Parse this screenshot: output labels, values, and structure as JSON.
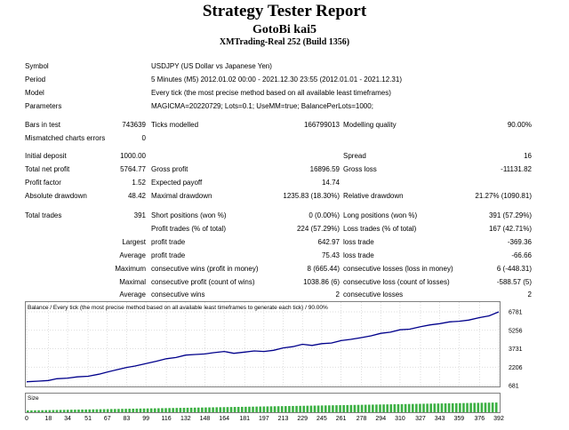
{
  "title": "Strategy Tester Report",
  "expert": "GotoBi kai5",
  "server": "XMTrading-Real 252 (Build 1356)",
  "settings": [
    {
      "label": "Symbol",
      "value": "USDJPY (US Dollar vs Japanese Yen)"
    },
    {
      "label": "Period",
      "value": "5 Minutes (M5) 2012.01.02 00:00 - 2021.12.30 23:55 (2012.01.01 - 2021.12.31)"
    },
    {
      "label": "Model",
      "value": "Every tick (the most precise method based on all available least timeframes)"
    },
    {
      "label": "Parameters",
      "value": "MAGICMA=20220729; Lots=0.1; UseMM=true; BalancePerLots=1000;"
    }
  ],
  "bars": {
    "label": "Bars in test",
    "value": "743639",
    "ticks_label": "Ticks modelled",
    "ticks_value": "166799013",
    "mq_label": "Modelling quality",
    "mq_value": "90.00%"
  },
  "mismatch": {
    "label": "Mismatched charts errors",
    "value": "0"
  },
  "stats": {
    "initial_deposit": {
      "label": "Initial deposit",
      "value": "1000.00"
    },
    "spread": {
      "label": "Spread",
      "value": "16"
    },
    "total_net_profit": {
      "label": "Total net profit",
      "value": "5764.77"
    },
    "gross_profit": {
      "label": "Gross profit",
      "value": "16896.59"
    },
    "gross_loss": {
      "label": "Gross loss",
      "value": "-11131.82"
    },
    "profit_factor": {
      "label": "Profit factor",
      "value": "1.52"
    },
    "expected_payoff": {
      "label": "Expected payoff",
      "value": "14.74"
    },
    "absolute_drawdown": {
      "label": "Absolute drawdown",
      "value": "48.42"
    },
    "maximal_drawdown": {
      "label": "Maximal drawdown",
      "value": "1235.83 (18.30%)"
    },
    "relative_drawdown": {
      "label": "Relative drawdown",
      "value": "21.27% (1090.81)"
    },
    "total_trades": {
      "label": "Total trades",
      "value": "391"
    },
    "short_positions": {
      "label": "Short positions (won %)",
      "value": "0 (0.00%)"
    },
    "long_positions": {
      "label": "Long positions (won %)",
      "value": "391 (57.29%)"
    },
    "profit_trades": {
      "label": "Profit trades (% of total)",
      "value": "224 (57.29%)"
    },
    "loss_trades": {
      "label": "Loss trades (% of total)",
      "value": "167 (42.71%)"
    }
  },
  "extremes": [
    {
      "prefix": "Largest",
      "a_label": "profit trade",
      "a_value": "642.97",
      "b_label": "loss trade",
      "b_value": "-369.36"
    },
    {
      "prefix": "Average",
      "a_label": "profit trade",
      "a_value": "75.43",
      "b_label": "loss trade",
      "b_value": "-66.66"
    },
    {
      "prefix": "Maximum",
      "a_label": "consecutive wins (profit in money)",
      "a_value": "8 (665.44)",
      "b_label": "consecutive losses (loss in money)",
      "b_value": "6 (-448.31)"
    },
    {
      "prefix": "Maximal",
      "a_label": "consecutive profit (count of wins)",
      "a_value": "1038.86 (6)",
      "b_label": "consecutive loss (count of losses)",
      "b_value": "-588.57 (5)"
    },
    {
      "prefix": "Average",
      "a_label": "consecutive wins",
      "a_value": "2",
      "b_label": "consecutive losses",
      "b_value": "2"
    }
  ],
  "chart_data": {
    "type": "line",
    "title": "Balance / Every tick (the most precise method based on all available least timeframes to generate each tick) / 90.00%",
    "xlabel": "",
    "ylabel": "",
    "y_ticks": [
      "6781",
      "5256",
      "3731",
      "2206",
      "681"
    ],
    "x_ticks": [
      "0",
      "18",
      "34",
      "51",
      "67",
      "83",
      "99",
      "116",
      "132",
      "148",
      "164",
      "181",
      "197",
      "213",
      "229",
      "245",
      "261",
      "278",
      "294",
      "310",
      "327",
      "343",
      "359",
      "376",
      "392"
    ],
    "xlim": [
      0,
      392
    ],
    "ylim": [
      681,
      6781
    ],
    "size_label": "Size",
    "grid": true,
    "series": [
      {
        "color": "#00008b",
        "x": [
          0,
          10,
          18,
          25,
          34,
          42,
          51,
          60,
          67,
          75,
          83,
          90,
          99,
          108,
          116,
          124,
          132,
          140,
          148,
          155,
          164,
          172,
          181,
          189,
          197,
          205,
          213,
          221,
          229,
          237,
          245,
          253,
          261,
          269,
          278,
          286,
          294,
          302,
          310,
          318,
          327,
          335,
          343,
          351,
          359,
          367,
          376,
          384,
          392
        ],
        "y": [
          1000,
          1050,
          1100,
          1250,
          1300,
          1400,
          1450,
          1620,
          1800,
          2000,
          2180,
          2300,
          2500,
          2700,
          2900,
          3000,
          3200,
          3250,
          3300,
          3400,
          3500,
          3350,
          3450,
          3550,
          3500,
          3600,
          3800,
          3900,
          4100,
          4000,
          4150,
          4200,
          4400,
          4500,
          4650,
          4800,
          5000,
          5100,
          5300,
          5350,
          5550,
          5700,
          5800,
          5950,
          6000,
          6100,
          6300,
          6450,
          6781
        ]
      }
    ]
  }
}
